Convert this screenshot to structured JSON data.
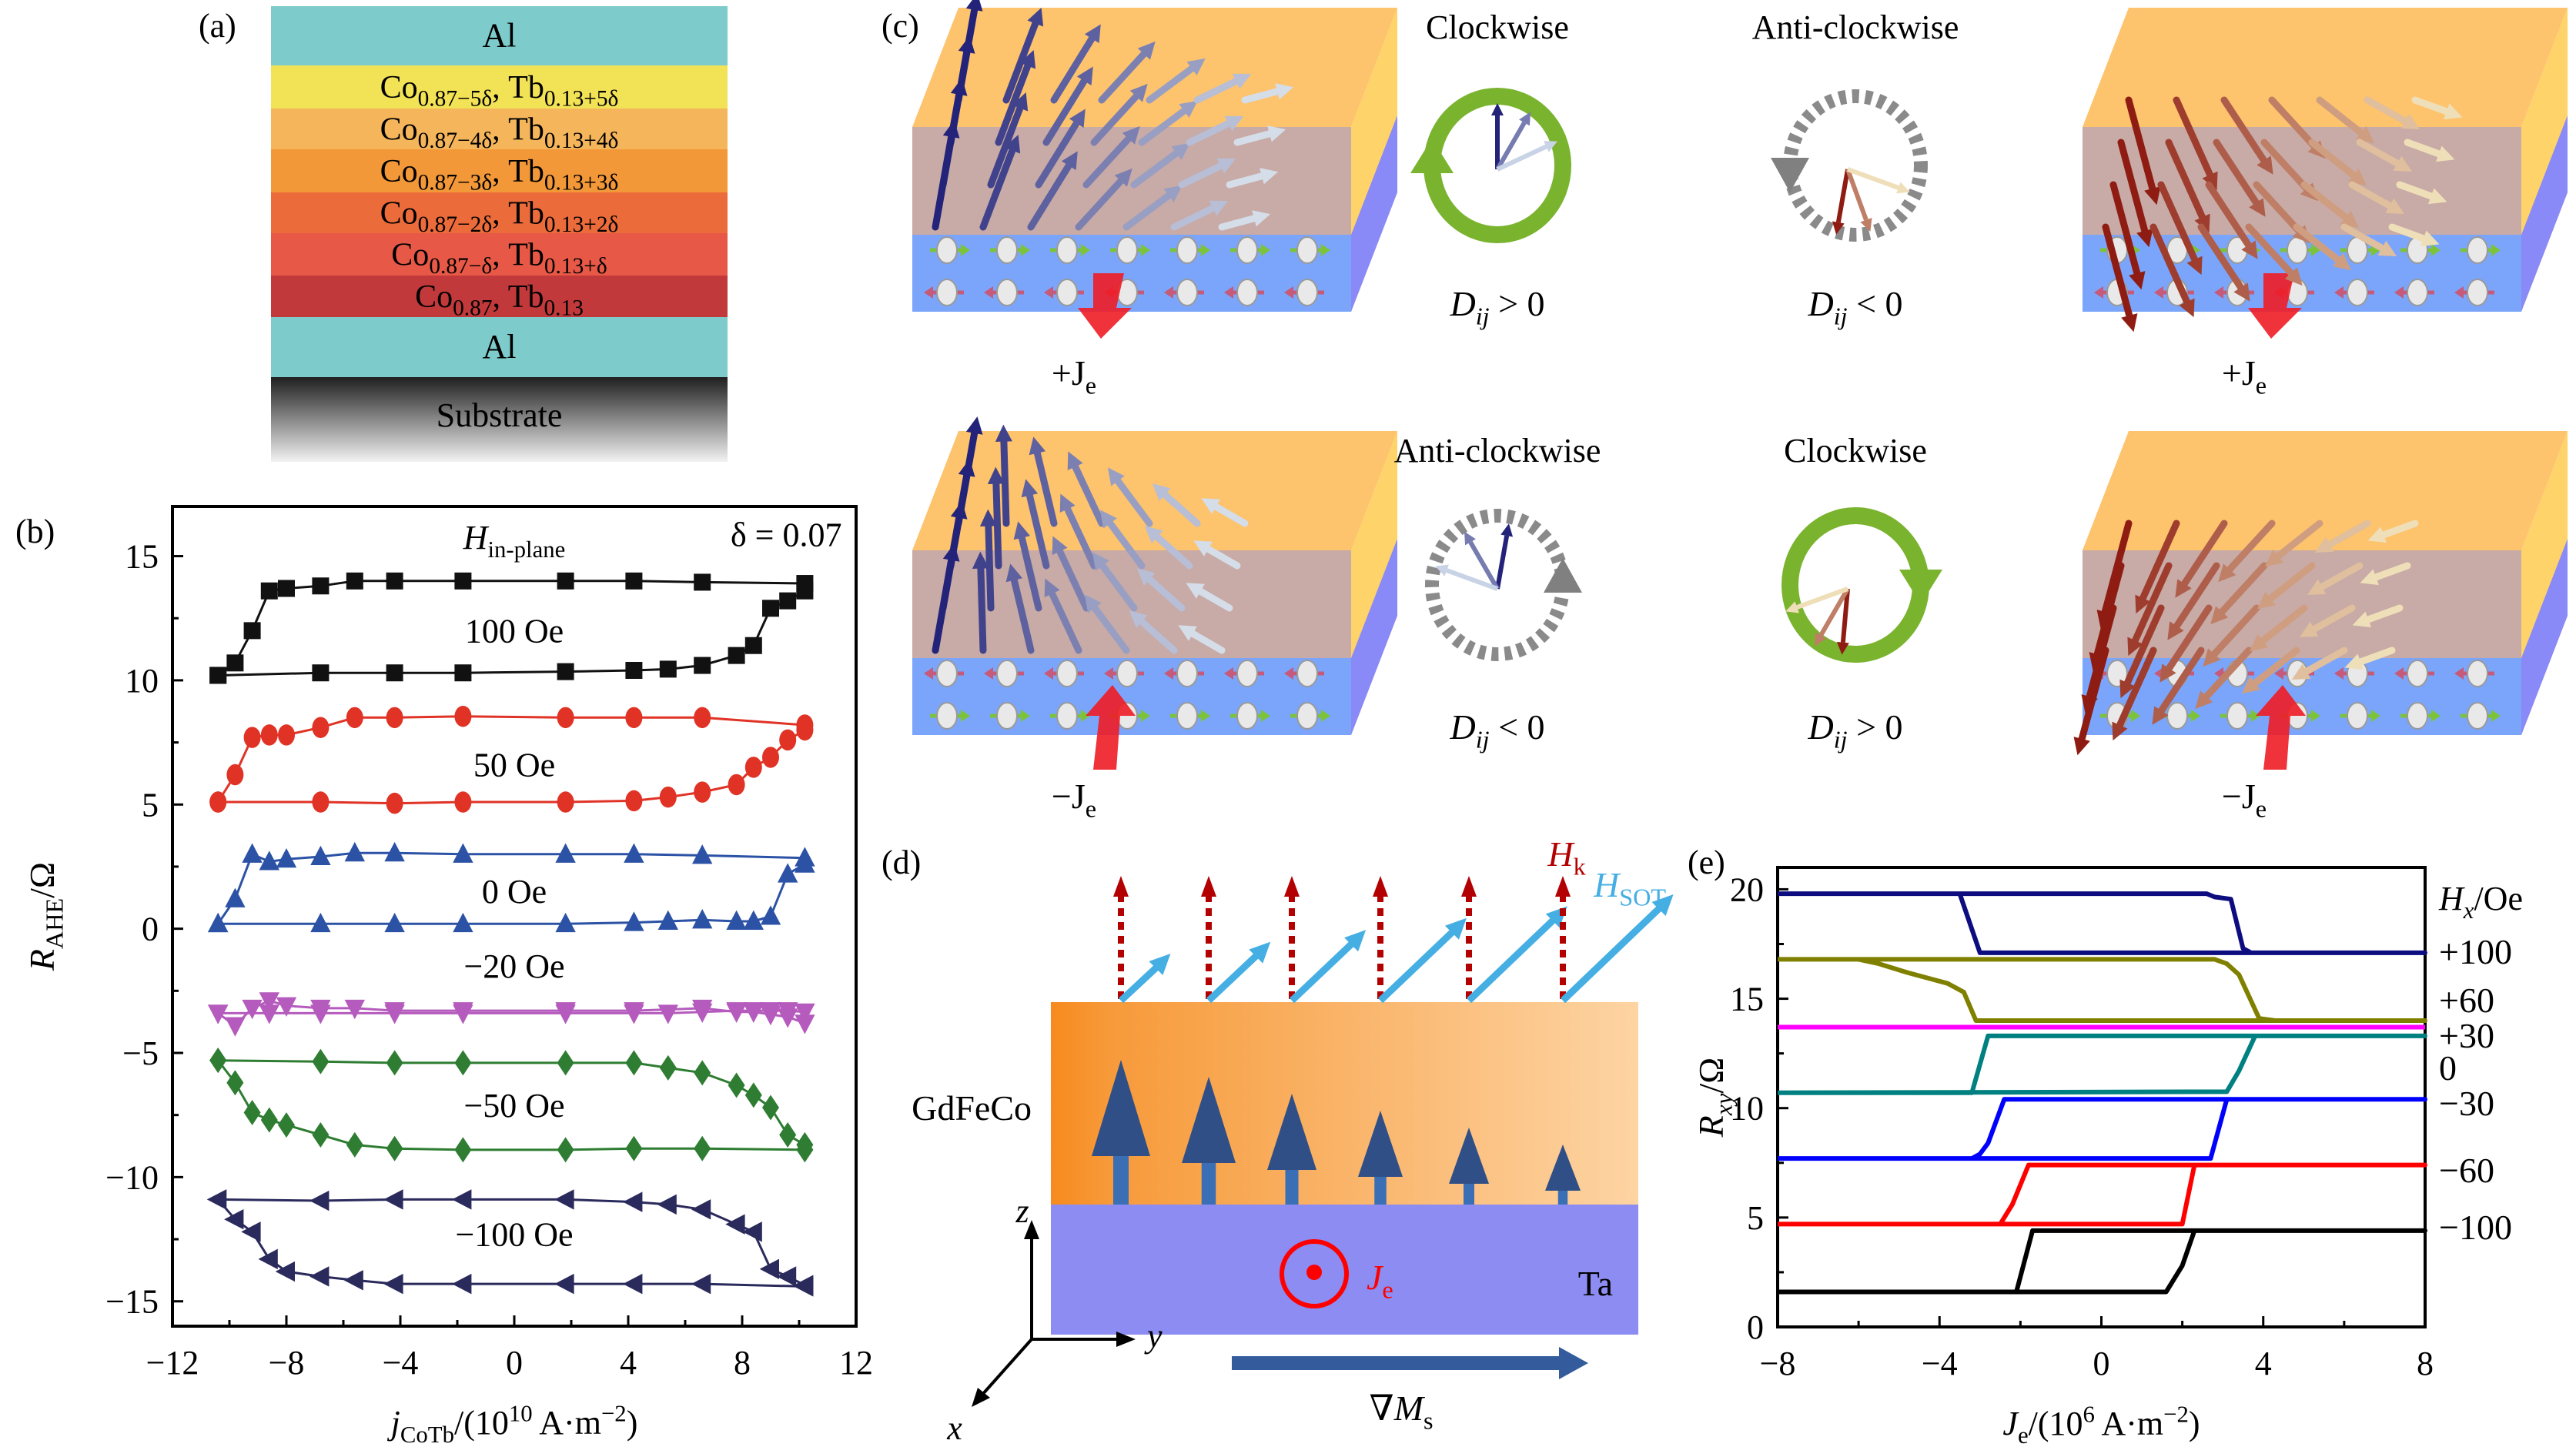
{
  "figure": {
    "panel_labels": {
      "a": "(a)",
      "b": "(b)",
      "c": "(c)",
      "d": "(d)",
      "e": "(e)"
    }
  },
  "panel_a": {
    "layers": [
      {
        "label": "Al",
        "sub1": "",
        "label2": "",
        "sub2": "",
        "color": "#7ecbcb"
      },
      {
        "label": "Co",
        "sub1": "0.87−5δ",
        "label2": "Tb",
        "sub2": "0.13+5δ",
        "color": "#f2e256"
      },
      {
        "label": "Co",
        "sub1": "0.87−4δ",
        "label2": "Tb",
        "sub2": "0.13+4δ",
        "color": "#f5b55a"
      },
      {
        "label": "Co",
        "sub1": "0.87−3δ",
        "label2": "Tb",
        "sub2": "0.13+3δ",
        "color": "#f39838"
      },
      {
        "label": "Co",
        "sub1": "0.87−2δ",
        "label2": "Tb",
        "sub2": "0.13+2δ",
        "color": "#ec6b3a"
      },
      {
        "label": "Co",
        "sub1": "0.87−δ",
        "label2": "Tb",
        "sub2": "0.13+δ",
        "color": "#e75846"
      },
      {
        "label": "Co",
        "sub1": "0.87",
        "label2": "Tb",
        "sub2": "0.13",
        "color": "#c1393a"
      },
      {
        "label": "Al",
        "sub1": "",
        "label2": "",
        "sub2": "",
        "color": "#7ecbcb"
      },
      {
        "label": "Substrate",
        "sub1": "",
        "label2": "",
        "sub2": "",
        "color": "gradient"
      }
    ]
  },
  "panel_c": {
    "cells": [
      {
        "current": "+J",
        "current_sub": "e",
        "rotation_label": "Clockwise",
        "dmi": "D",
        "dmi_sub": "ij",
        "dmi_rel": " > 0",
        "arrow_color": "blue",
        "circle": "green-solid"
      },
      {
        "current": "+J",
        "current_sub": "e",
        "rotation_label": "Anti-clockwise",
        "dmi": "D",
        "dmi_sub": "ij",
        "dmi_rel": " < 0",
        "arrow_color": "red",
        "circle": "gray-dashed"
      },
      {
        "current": "−J",
        "current_sub": "e",
        "rotation_label": "Anti-clockwise",
        "dmi": "D",
        "dmi_sub": "ij",
        "dmi_rel": " < 0",
        "arrow_color": "blue",
        "circle": "gray-dashed"
      },
      {
        "current": "−J",
        "current_sub": "e",
        "rotation_label": "Clockwise",
        "dmi": "D",
        "dmi_sub": "ij",
        "dmi_rel": " > 0",
        "arrow_color": "red",
        "circle": "green-solid"
      }
    ]
  },
  "panel_d": {
    "top_layer": "GdFeCo",
    "bottom_layer": "Ta",
    "hk_label": "H",
    "hk_sub": "k",
    "hsot_label": "H",
    "hsot_sub": "SOT",
    "current_label": "J",
    "current_sub": "e",
    "gradient_label": "∇M",
    "gradient_sub": "s",
    "axis_x": "x",
    "axis_y": "y",
    "axis_z": "z",
    "colors": {
      "hk": "#b30000",
      "hsot": "#45aee3",
      "current": "#ff0000",
      "moment": "#3a6fb5",
      "gradient_arrow": "#345c9c"
    }
  },
  "chart_data": [
    {
      "id": "b",
      "type": "line",
      "title": "",
      "annotations": [
        {
          "text": "H",
          "sub": "in-plane"
        },
        {
          "text": "δ = 0.07"
        }
      ],
      "xlabel": "j",
      "xlabel_sub": "CoTb",
      "xlabel_rest": "/(10",
      "xlabel_sup": "10",
      "xlabel_units": " A·m",
      "xlabel_units_sup": "−2",
      "xlabel_close": ")",
      "ylabel": "R",
      "ylabel_sub": "AHE",
      "ylabel_rest": "/Ω",
      "xlim": [
        -12,
        12
      ],
      "ylim": [
        -16,
        17
      ],
      "xticks": [
        -12,
        -8,
        -4,
        0,
        4,
        8,
        12
      ],
      "xtick_labels": [
        "−12",
        "−8",
        "−4",
        "0",
        "4",
        "8",
        "12"
      ],
      "yticks": [
        -15,
        -10,
        -5,
        0,
        5,
        10,
        15
      ],
      "ytick_labels": [
        "−15",
        "−10",
        "−5",
        "0",
        "5",
        "10",
        "15"
      ],
      "grid": false,
      "series": [
        {
          "name": "100 Oe",
          "color": "#111111",
          "marker": "square",
          "x": [
            -10.4,
            -9.8,
            -9.2,
            -8.6,
            -8.0,
            -6.8,
            -5.6,
            -4.2,
            -1.8,
            1.8,
            4.2,
            6.6,
            10.2,
            10.2,
            9.6,
            9.0,
            8.4,
            7.8,
            6.6,
            5.4,
            4.2,
            1.8,
            -1.8,
            -4.2,
            -6.8,
            -10.4
          ],
          "y": [
            10.2,
            10.7,
            12.0,
            13.6,
            13.7,
            13.8,
            14.0,
            14.0,
            14.0,
            14.0,
            14.0,
            13.95,
            13.9,
            13.6,
            13.2,
            12.9,
            11.4,
            11.0,
            10.6,
            10.45,
            10.4,
            10.35,
            10.3,
            10.3,
            10.3,
            10.2
          ]
        },
        {
          "name": "50 Oe",
          "color": "#e03326",
          "marker": "circle",
          "x": [
            -10.4,
            -9.8,
            -9.2,
            -8.6,
            -8.0,
            -6.8,
            -5.6,
            -4.2,
            -1.8,
            1.8,
            4.2,
            6.6,
            10.2,
            10.2,
            9.6,
            9.0,
            8.4,
            7.8,
            6.6,
            5.4,
            4.2,
            1.8,
            -1.8,
            -4.2,
            -6.8,
            -10.4
          ],
          "y": [
            5.1,
            6.2,
            7.7,
            7.8,
            7.8,
            8.1,
            8.5,
            8.5,
            8.55,
            8.5,
            8.5,
            8.5,
            8.2,
            8.0,
            7.6,
            6.9,
            6.5,
            5.8,
            5.5,
            5.3,
            5.15,
            5.1,
            5.1,
            5.05,
            5.1,
            5.1
          ]
        },
        {
          "name": "0 Oe",
          "color": "#2c52a6",
          "marker": "triangle-up",
          "x": [
            -10.4,
            -9.8,
            -9.2,
            -8.6,
            -8.0,
            -6.8,
            -5.6,
            -4.2,
            -1.8,
            1.8,
            4.2,
            6.6,
            10.2,
            10.2,
            9.6,
            9.0,
            8.4,
            7.8,
            6.6,
            5.4,
            4.2,
            1.8,
            -1.8,
            -4.2,
            -6.8,
            -10.4
          ],
          "y": [
            0.2,
            1.2,
            3.0,
            2.7,
            2.8,
            2.9,
            3.05,
            3.05,
            3.0,
            3.0,
            3.0,
            2.95,
            2.85,
            2.6,
            2.2,
            0.5,
            0.3,
            0.3,
            0.35,
            0.3,
            0.25,
            0.2,
            0.2,
            0.2,
            0.2,
            0.2
          ]
        },
        {
          "name": "−20 Oe",
          "color": "#b55bbd",
          "marker": "triangle-down",
          "x": [
            -10.4,
            -9.8,
            -9.2,
            -8.6,
            -8.0,
            -6.8,
            -5.6,
            -4.2,
            -1.8,
            1.8,
            4.2,
            6.6,
            7.8,
            8.4,
            9.0,
            9.6,
            10.2,
            10.2,
            9.6,
            9.0,
            8.4,
            7.8,
            6.6,
            5.4,
            4.2,
            1.8,
            -1.8,
            -4.2,
            -6.8,
            -8.6,
            -10.4
          ],
          "y": [
            -3.4,
            -3.9,
            -3.2,
            -2.9,
            -3.1,
            -3.2,
            -3.2,
            -3.3,
            -3.3,
            -3.3,
            -3.3,
            -3.2,
            -3.35,
            -3.35,
            -3.45,
            -3.55,
            -3.8,
            -3.35,
            -3.3,
            -3.3,
            -3.3,
            -3.3,
            -3.35,
            -3.4,
            -3.4,
            -3.4,
            -3.4,
            -3.4,
            -3.4,
            -3.4,
            -3.4
          ]
        },
        {
          "name": "−50 Oe",
          "color": "#2e7d32",
          "marker": "diamond",
          "x": [
            -10.4,
            -9.8,
            -9.2,
            -8.6,
            -8.0,
            -6.8,
            -5.6,
            -4.2,
            -1.8,
            1.8,
            4.2,
            6.6,
            10.2,
            10.2,
            9.6,
            9.0,
            8.4,
            7.8,
            6.6,
            5.4,
            4.2,
            1.8,
            -1.8,
            -4.2,
            -6.8,
            -10.4
          ],
          "y": [
            -5.3,
            -6.2,
            -7.4,
            -7.7,
            -7.9,
            -8.3,
            -8.7,
            -8.85,
            -8.9,
            -8.9,
            -8.85,
            -8.85,
            -8.9,
            -8.7,
            -8.3,
            -7.2,
            -6.7,
            -6.3,
            -5.8,
            -5.6,
            -5.4,
            -5.4,
            -5.4,
            -5.4,
            -5.35,
            -5.3
          ]
        },
        {
          "name": "−100 Oe",
          "color": "#2b2a5c",
          "marker": "triangle-left",
          "x": [
            -10.4,
            -9.8,
            -9.2,
            -8.6,
            -8.0,
            -6.8,
            -5.6,
            -4.2,
            -1.8,
            1.8,
            4.2,
            6.6,
            10.2,
            10.2,
            9.6,
            9.0,
            8.4,
            7.8,
            6.6,
            5.4,
            4.2,
            1.8,
            -1.8,
            -4.2,
            -6.8,
            -10.4
          ],
          "y": [
            -10.9,
            -11.7,
            -12.2,
            -13.3,
            -13.8,
            -14.0,
            -14.15,
            -14.3,
            -14.3,
            -14.3,
            -14.3,
            -14.3,
            -14.4,
            -14.35,
            -14.0,
            -13.7,
            -12.2,
            -11.9,
            -11.3,
            -11.1,
            -11.0,
            -10.9,
            -10.9,
            -10.9,
            -10.95,
            -10.9
          ]
        }
      ],
      "curve_labels": [
        {
          "text": "100 Oe",
          "x": 0,
          "y": 12.0
        },
        {
          "text": "50 Oe",
          "x": 0,
          "y": 6.6
        },
        {
          "text": "0 Oe",
          "x": 0,
          "y": 1.5
        },
        {
          "text": "−20 Oe",
          "x": 0,
          "y": -1.5
        },
        {
          "text": "−50 Oe",
          "x": 0,
          "y": -7.1
        },
        {
          "text": "−100 Oe",
          "x": 0,
          "y": -12.3
        }
      ]
    },
    {
      "id": "e",
      "type": "line",
      "title": "",
      "xlabel": "J",
      "xlabel_sub": "e",
      "xlabel_rest": "/(10",
      "xlabel_sup": "6",
      "xlabel_units": " A·m",
      "xlabel_units_sup": "−2",
      "xlabel_close": ")",
      "ylabel": "R",
      "ylabel_sub": "xy",
      "ylabel_rest": "/Ω",
      "xlim": [
        -8,
        8
      ],
      "ylim": [
        0,
        21
      ],
      "xticks": [
        -8,
        -4,
        0,
        4,
        8
      ],
      "xtick_labels": [
        "−8",
        "−4",
        "0",
        "4",
        "8"
      ],
      "yticks": [
        0,
        5,
        10,
        15,
        20
      ],
      "ytick_labels": [
        "0",
        "5",
        "10",
        "15",
        "20"
      ],
      "grid": false,
      "legend_title": "H",
      "legend_title_sub": "x",
      "legend_title_rest": "/Oe",
      "legend_position": "right",
      "series": [
        {
          "name": "+100",
          "color": "#0d0d80",
          "x": [
            -8,
            2.6,
            2.8,
            3.2,
            3.5,
            3.7,
            8,
            8,
            -3.0,
            -3.5,
            -8
          ],
          "y": [
            19.8,
            19.8,
            19.65,
            19.55,
            17.3,
            17.1,
            17.1,
            17.1,
            17.1,
            19.8,
            19.8
          ]
        },
        {
          "name": "+60",
          "color": "#808000",
          "x": [
            -8,
            2.8,
            3.1,
            3.4,
            3.9,
            4.3,
            8,
            8,
            -3.1,
            -3.4,
            -3.8,
            -4.2,
            -4.8,
            -5.5,
            -6.0,
            -8
          ],
          "y": [
            16.8,
            16.8,
            16.6,
            16.1,
            14.1,
            14.0,
            14.0,
            14.0,
            14.0,
            15.3,
            15.7,
            15.9,
            16.2,
            16.6,
            16.8,
            16.8
          ]
        },
        {
          "name": "+30",
          "color": "#ff00ff",
          "x": [
            -8,
            8
          ],
          "y": [
            13.7,
            13.7
          ]
        },
        {
          "name": "0",
          "color": "#008080",
          "x": [
            -8,
            3.1,
            3.4,
            3.8,
            8,
            8,
            -2.8,
            -3.2,
            -8
          ],
          "y": [
            10.7,
            10.75,
            11.7,
            13.3,
            13.3,
            13.3,
            13.3,
            10.7,
            10.7
          ]
        },
        {
          "name": "−30",
          "color": "#0000ff",
          "x": [
            -8,
            2.7,
            3.1,
            8,
            8,
            -2.4,
            -2.8,
            -3.0,
            -3.2,
            -8
          ],
          "y": [
            7.7,
            7.7,
            10.4,
            10.4,
            10.4,
            10.4,
            8.4,
            7.9,
            7.7,
            7.7
          ]
        },
        {
          "name": "−60",
          "color": "#ff0000",
          "x": [
            -8,
            2.0,
            2.3,
            8,
            8,
            -1.8,
            -2.2,
            -2.5,
            -8
          ],
          "y": [
            4.7,
            4.7,
            7.4,
            7.4,
            7.4,
            7.4,
            5.6,
            4.7,
            4.7
          ]
        },
        {
          "name": "−100",
          "color": "#000000",
          "x": [
            -8,
            1.6,
            2.0,
            2.3,
            8,
            8,
            -1.7,
            -2.1,
            -8
          ],
          "y": [
            1.6,
            1.6,
            2.8,
            4.4,
            4.4,
            4.4,
            4.4,
            1.6,
            1.6
          ]
        }
      ]
    }
  ]
}
